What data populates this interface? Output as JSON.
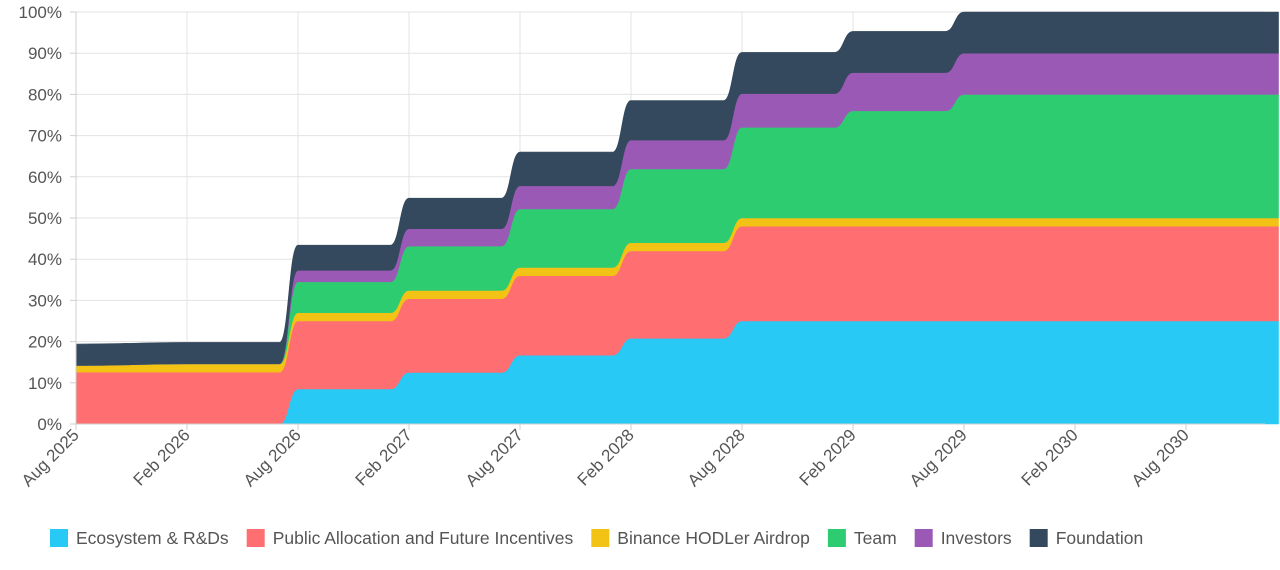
{
  "chart_data": {
    "type": "area",
    "stacked": true,
    "y_format": "percent",
    "ylim": [
      0,
      100
    ],
    "y_ticks": [
      "0%",
      "10%",
      "20%",
      "30%",
      "40%",
      "50%",
      "60%",
      "70%",
      "80%",
      "90%",
      "100%"
    ],
    "x_tick_labels": [
      "Aug 2025",
      "Feb 2026",
      "Aug 2026",
      "Feb 2027",
      "Aug 2027",
      "Feb 2028",
      "Aug 2028",
      "Feb 2029",
      "Aug 2029",
      "Feb 2030",
      "Aug 2030"
    ],
    "x": [
      "Aug 2025",
      "Feb 2026",
      "Jul 2026",
      "Aug 2026",
      "Jan 2027",
      "Feb 2027",
      "Jul 2027",
      "Aug 2027",
      "Jan 2028",
      "Feb 2028",
      "Jul 2028",
      "Aug 2028",
      "Jan 2029",
      "Feb 2029",
      "Jul 2029",
      "Aug 2029",
      "Feb 2030",
      "Aug 2030",
      "Jan 2031"
    ],
    "grid": true,
    "legend_position": "bottom",
    "series": [
      {
        "name": "Ecosystem & R&Ds",
        "color": "#29c9f5",
        "values": [
          0,
          0,
          0,
          8.5,
          8.5,
          12.5,
          12.5,
          16.7,
          16.7,
          20.8,
          20.8,
          25,
          25,
          25,
          25,
          25,
          25,
          25,
          25
        ]
      },
      {
        "name": "Public Allocation and Future Incentives",
        "color": "#ff6f71",
        "values": [
          12.6,
          12.6,
          12.6,
          16.5,
          16.5,
          17.9,
          17.9,
          19.3,
          19.3,
          21.2,
          21.2,
          23,
          23,
          23,
          23,
          23,
          23,
          23,
          23
        ]
      },
      {
        "name": "Binance HODLer Airdrop",
        "color": "#f2c314",
        "values": [
          1.6,
          2,
          2,
          2,
          2,
          2,
          2,
          2,
          2,
          2,
          2,
          2,
          2,
          2,
          2,
          2,
          2,
          2,
          2
        ]
      },
      {
        "name": "Team",
        "color": "#2ecc71",
        "values": [
          0,
          0,
          0,
          7.5,
          7.5,
          10.8,
          10.8,
          14.2,
          14.2,
          17.9,
          17.9,
          22,
          22,
          26,
          26,
          30,
          30,
          30,
          30
        ]
      },
      {
        "name": "Investors",
        "color": "#9b59b6",
        "values": [
          0,
          0,
          0,
          2.8,
          2.8,
          4.2,
          4.2,
          5.6,
          5.6,
          7,
          7,
          8.2,
          8.2,
          9.3,
          9.3,
          10,
          10,
          10,
          10
        ]
      },
      {
        "name": "Foundation",
        "color": "#34495e",
        "values": [
          5.2,
          5.2,
          5.2,
          6.1,
          6.1,
          7.4,
          7.4,
          8.2,
          8.2,
          9.6,
          9.6,
          10,
          10,
          10,
          10,
          10,
          10,
          10,
          10
        ]
      }
    ]
  }
}
